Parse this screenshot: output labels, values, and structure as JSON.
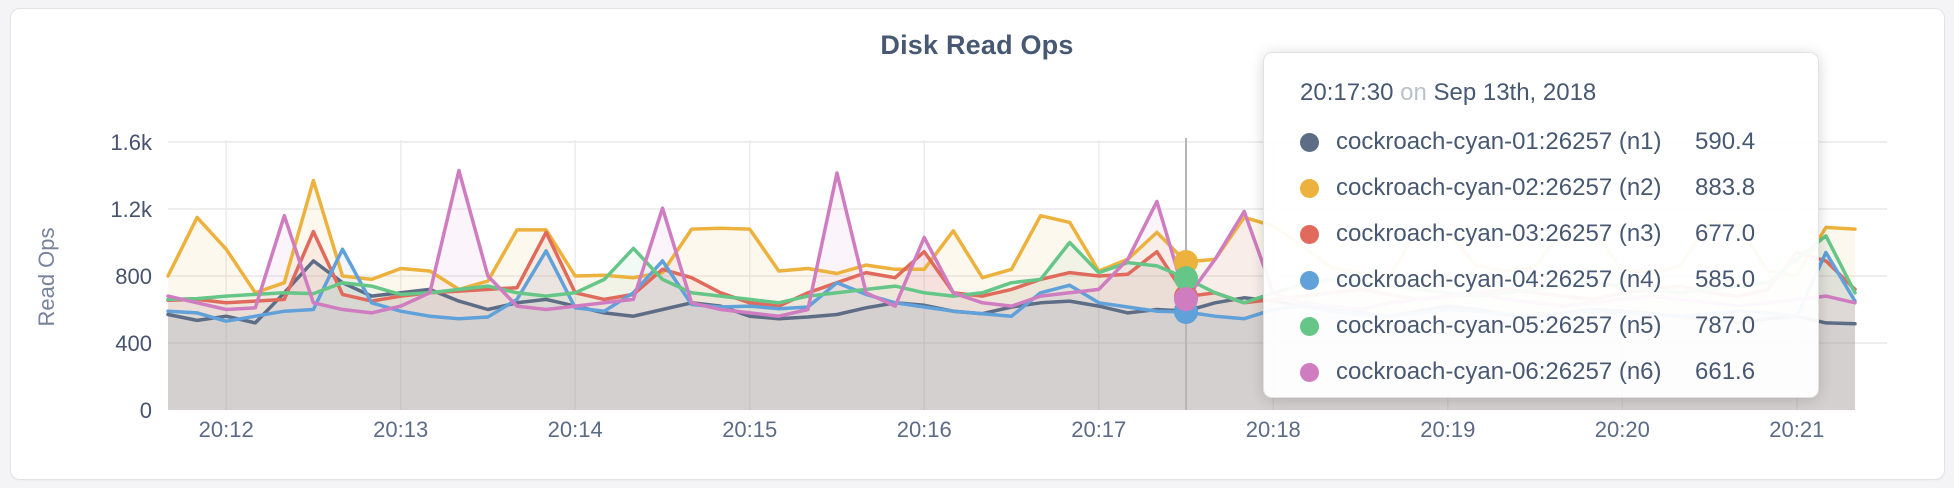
{
  "header": {
    "title": "Disk Read Ops"
  },
  "y_axis": {
    "label": "Read Ops",
    "ticks": [
      "0",
      "400",
      "800",
      "1.2k",
      "1.6k"
    ]
  },
  "x_axis": {
    "ticks": [
      "20:12",
      "20:13",
      "20:14",
      "20:15",
      "20:16",
      "20:17",
      "20:18",
      "20:19",
      "20:20",
      "20:21"
    ]
  },
  "tooltip": {
    "time": "20:17:30",
    "separator": "on",
    "date": "Sep 13th, 2018",
    "rows": [
      {
        "name": "cockroach-cyan-01:26257 (n1)",
        "value": "590.4",
        "color": "#5d6d86"
      },
      {
        "name": "cockroach-cyan-02:26257 (n2)",
        "value": "883.8",
        "color": "#ecb23d"
      },
      {
        "name": "cockroach-cyan-03:26257 (n3)",
        "value": "677.0",
        "color": "#e06a5c"
      },
      {
        "name": "cockroach-cyan-04:26257 (n4)",
        "value": "585.0",
        "color": "#61a1da"
      },
      {
        "name": "cockroach-cyan-05:26257 (n5)",
        "value": "787.0",
        "color": "#66c688"
      },
      {
        "name": "cockroach-cyan-06:26257 (n6)",
        "value": "661.6",
        "color": "#cf7dc0"
      }
    ]
  },
  "chart_data": {
    "type": "line",
    "title": "Disk Read Ops",
    "ylabel": "Read Ops",
    "ylim": [
      0,
      1600
    ],
    "y_gridline_values": [
      400,
      800,
      1200,
      1600
    ],
    "x_start": "20:11:40",
    "x_interval_seconds": 10,
    "x_tick_labels": [
      "20:12",
      "20:13",
      "20:14",
      "20:15",
      "20:16",
      "20:17",
      "20:18",
      "20:19",
      "20:20",
      "20:21"
    ],
    "x_tick_indices": [
      2,
      8,
      14,
      20,
      26,
      32,
      38,
      44,
      50,
      56
    ],
    "hover_index": 35,
    "hover_time": "20:17:30",
    "hover_date": "Sep 13th, 2018",
    "legend_position": "tooltip",
    "grid": true,
    "series": [
      {
        "name": "cockroach-cyan-01:26257 (n1)",
        "color": "#5d6d86",
        "hover_value": 590.4,
        "values": [
          570,
          535,
          560,
          520,
          700,
          890,
          760,
          680,
          700,
          720,
          650,
          600,
          640,
          660,
          620,
          580,
          560,
          600,
          640,
          620,
          560,
          545,
          555,
          570,
          610,
          640,
          625,
          590,
          575,
          615,
          640,
          650,
          620,
          580,
          600,
          590.4,
          640,
          670,
          650,
          620,
          600,
          580,
          560,
          590,
          620,
          600,
          570,
          555,
          580,
          600,
          590,
          575,
          560,
          540,
          520,
          545,
          560,
          520,
          515
        ]
      },
      {
        "name": "cockroach-cyan-02:26257 (n2)",
        "color": "#ecb23d",
        "hover_value": 883.8,
        "values": [
          800,
          1150,
          960,
          700,
          760,
          1370,
          800,
          780,
          845,
          830,
          720,
          770,
          1075,
          1075,
          800,
          805,
          790,
          820,
          1080,
          1085,
          1080,
          830,
          845,
          815,
          865,
          840,
          840,
          1070,
          790,
          840,
          1160,
          1120,
          830,
          900,
          1060,
          883.8,
          900,
          1150,
          1100,
          980,
          850,
          820,
          800,
          1080,
          1060,
          860,
          830,
          850,
          1090,
          1070,
          840,
          820,
          860,
          1130,
          1100,
          830,
          800,
          1090,
          1080
        ]
      },
      {
        "name": "cockroach-cyan-03:26257 (n3)",
        "color": "#e06a5c",
        "hover_value": 677.0,
        "values": [
          655,
          660,
          640,
          650,
          660,
          1065,
          690,
          650,
          680,
          700,
          710,
          720,
          730,
          1060,
          700,
          660,
          690,
          840,
          790,
          700,
          640,
          620,
          700,
          760,
          820,
          790,
          945,
          700,
          680,
          720,
          780,
          820,
          800,
          810,
          945,
          677,
          700,
          640,
          660,
          680,
          700,
          720,
          690,
          660,
          680,
          700,
          720,
          700,
          680,
          660,
          700,
          720,
          740,
          700,
          680,
          720,
          940,
          890,
          720
        ]
      },
      {
        "name": "cockroach-cyan-04:26257 (n4)",
        "color": "#61a1da",
        "hover_value": 585.0,
        "values": [
          590,
          580,
          530,
          560,
          590,
          600,
          960,
          640,
          590,
          560,
          545,
          555,
          660,
          950,
          610,
          590,
          700,
          890,
          630,
          615,
          620,
          605,
          615,
          760,
          690,
          640,
          615,
          590,
          575,
          560,
          700,
          745,
          640,
          615,
          590,
          585,
          560,
          545,
          600,
          620,
          590,
          570,
          560,
          580,
          600,
          590,
          570,
          560,
          580,
          590,
          580,
          570,
          560,
          575,
          590,
          580,
          560,
          940,
          650
        ]
      },
      {
        "name": "cockroach-cyan-05:26257 (n5)",
        "color": "#66c688",
        "hover_value": 787.0,
        "values": [
          660,
          665,
          680,
          690,
          700,
          695,
          760,
          740,
          690,
          700,
          720,
          740,
          700,
          680,
          700,
          780,
          965,
          780,
          700,
          680,
          660,
          640,
          680,
          700,
          720,
          740,
          700,
          680,
          700,
          760,
          780,
          1000,
          820,
          880,
          860,
          787,
          700,
          640,
          700,
          750,
          780,
          760,
          740,
          720,
          700,
          680,
          700,
          720,
          740,
          760,
          740,
          720,
          700,
          720,
          740,
          760,
          900,
          1040,
          700
        ]
      },
      {
        "name": "cockroach-cyan-06:26257 (n6)",
        "color": "#cf7dc0",
        "hover_value": 661.6,
        "values": [
          680,
          640,
          600,
          610,
          1160,
          640,
          600,
          580,
          620,
          700,
          1430,
          800,
          620,
          600,
          620,
          640,
          660,
          1205,
          640,
          600,
          580,
          560,
          600,
          1415,
          700,
          620,
          1030,
          700,
          640,
          620,
          680,
          700,
          720,
          900,
          1245,
          661.6,
          900,
          1185,
          700,
          640,
          620,
          600,
          640,
          660,
          680,
          700,
          660,
          640,
          620,
          640,
          660,
          680,
          660,
          640,
          620,
          640,
          660,
          680,
          640
        ]
      }
    ]
  }
}
